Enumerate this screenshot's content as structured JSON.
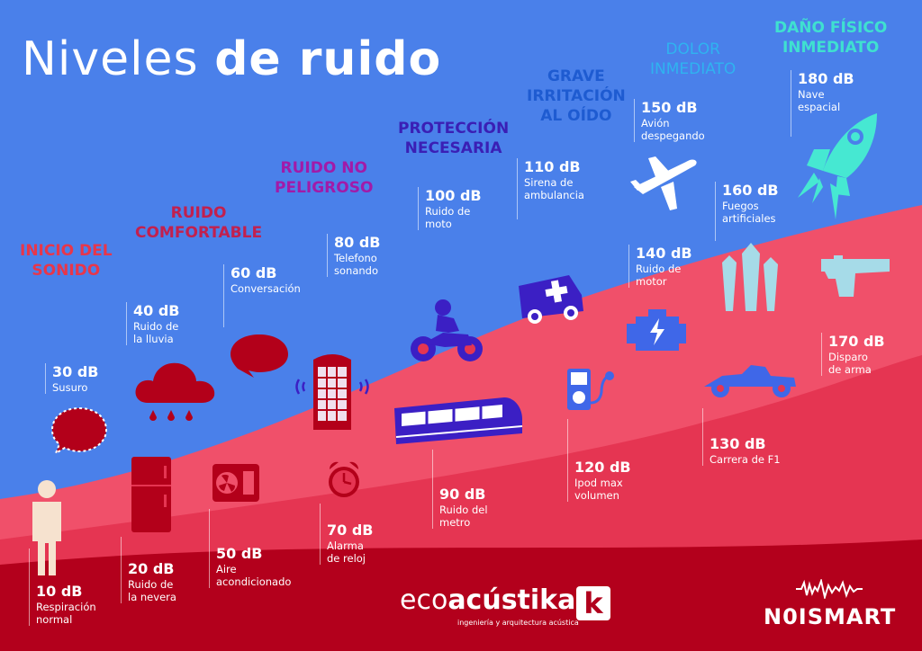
{
  "title": {
    "part1": "Niveles",
    "part2": "de ruido"
  },
  "categories": [
    {
      "key": "inicio",
      "line1": "INICIO DEL",
      "line2": "SONIDO",
      "color": "#e8364a"
    },
    {
      "key": "comfortable",
      "line1": "RUIDO",
      "line2": "COMFORTABLE",
      "color": "#c2204e"
    },
    {
      "key": "no-peligroso",
      "line1": "RUIDO NO",
      "line2": "PELIGROSO",
      "color": "#a21aa8"
    },
    {
      "key": "proteccion",
      "line1": "PROTECCIÓN",
      "line2": "NECESARIA",
      "color": "#3a1fb5"
    },
    {
      "key": "grave",
      "line1": "GRAVE",
      "line2": "IRRITACIÓN",
      "line3": "AL OÍDO",
      "color": "#1e5bd1"
    },
    {
      "key": "dolor",
      "line1": "DOLOR",
      "line2": "INMEDIATO",
      "color": "#2fb3f0"
    },
    {
      "key": "dano",
      "line1": "DAÑO FÍSICO",
      "line2": "INMEDIATO",
      "color": "#3fe0d0"
    }
  ],
  "levels": [
    {
      "db": "10 dB",
      "l1": "Respiración",
      "l2": "normal"
    },
    {
      "db": "20 dB",
      "l1": "Ruido de",
      "l2": "la nevera"
    },
    {
      "db": "30 dB",
      "l1": "Susuro",
      "l2": ""
    },
    {
      "db": "40 dB",
      "l1": "Ruido de",
      "l2": "la lluvia"
    },
    {
      "db": "50 dB",
      "l1": "Aire",
      "l2": "acondicionado"
    },
    {
      "db": "60 dB",
      "l1": "Conversación",
      "l2": ""
    },
    {
      "db": "70 dB",
      "l1": "Alarma",
      "l2": "de reloj"
    },
    {
      "db": "80 dB",
      "l1": "Telefono",
      "l2": "sonando"
    },
    {
      "db": "90 dB",
      "l1": "Ruido del",
      "l2": "metro"
    },
    {
      "db": "100 dB",
      "l1": "Ruido de",
      "l2": "moto"
    },
    {
      "db": "110 dB",
      "l1": "Sirena de",
      "l2": "ambulancia"
    },
    {
      "db": "120 dB",
      "l1": "Ipod max",
      "l2": "volumen"
    },
    {
      "db": "130 dB",
      "l1": "Carrera de F1",
      "l2": ""
    },
    {
      "db": "140 dB",
      "l1": "Ruido de",
      "l2": "motor"
    },
    {
      "db": "150 dB",
      "l1": "Avión",
      "l2": "despegando"
    },
    {
      "db": "160 dB",
      "l1": "Fuegos",
      "l2": "artificiales"
    },
    {
      "db": "170 dB",
      "l1": "Disparo",
      "l2": "de arma"
    },
    {
      "db": "180 dB",
      "l1": "Nave",
      "l2": "espacial"
    }
  ],
  "logos": {
    "eco_light": "eco",
    "eco_bold": "acústika",
    "eco_sub": "ingeniería y arquitectura acústica",
    "eco_k": "k",
    "noismart": "N0ISMART"
  },
  "colors": {
    "background_blue": "#4a80ea",
    "band_pink": "#f0506a",
    "band_red": "#e53552",
    "band_dark": "#b3001c",
    "icon_dark_red": "#b3001a",
    "icon_purple": "#3b1fc4",
    "icon_blue": "#3f67e8",
    "icon_cyan": "#46e8d2"
  }
}
